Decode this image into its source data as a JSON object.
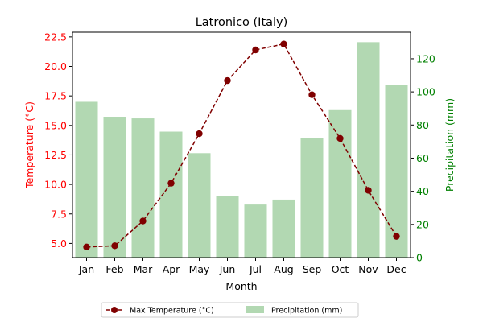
{
  "chart_data": {
    "type": "bar+line",
    "title": "Latronico (Italy)",
    "xlabel": "Month",
    "categories": [
      "Jan",
      "Feb",
      "Mar",
      "Apr",
      "May",
      "Jun",
      "Jul",
      "Aug",
      "Sep",
      "Oct",
      "Nov",
      "Dec"
    ],
    "left_axis": {
      "label": "Temperature (°C)",
      "range": [
        3.8,
        22.9
      ],
      "ticks": [
        "5.0",
        "7.5",
        "10.0",
        "12.5",
        "15.0",
        "17.5",
        "20.0",
        "22.5"
      ],
      "color": "#ff0000"
    },
    "right_axis": {
      "label": "Precipitation (mm)",
      "range": [
        0,
        136
      ],
      "ticks": [
        "0",
        "20",
        "40",
        "60",
        "80",
        "100",
        "120"
      ],
      "color": "#008000"
    },
    "series": [
      {
        "name": "Max Temperature (°C)",
        "type": "line",
        "axis": "left",
        "color": "#800000",
        "style": "dashed",
        "marker": "circle",
        "values": [
          4.7,
          4.8,
          6.9,
          10.1,
          14.3,
          18.8,
          21.4,
          21.9,
          17.6,
          13.9,
          9.5,
          5.6
        ]
      },
      {
        "name": "Precipitation (mm)",
        "type": "bar",
        "axis": "right",
        "color": "#b2d8b2",
        "values": [
          94,
          85,
          84,
          76,
          63,
          37,
          32,
          35,
          72,
          89,
          130,
          104
        ]
      }
    ],
    "legend": {
      "placement": "bottom-center",
      "items": [
        "Max Temperature (°C)",
        "Precipitation (mm)"
      ]
    },
    "grid": false
  }
}
